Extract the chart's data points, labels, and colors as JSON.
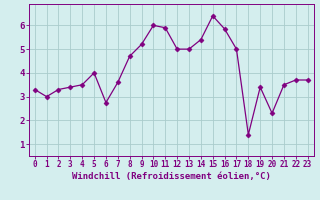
{
  "title": "",
  "xlabel": "Windchill (Refroidissement éolien,°C)",
  "ylabel": "",
  "x": [
    0,
    1,
    2,
    3,
    4,
    5,
    6,
    7,
    8,
    9,
    10,
    11,
    12,
    13,
    14,
    15,
    16,
    17,
    18,
    19,
    20,
    21,
    22,
    23
  ],
  "y": [
    3.3,
    3.0,
    3.3,
    3.4,
    3.5,
    4.0,
    2.75,
    3.6,
    4.7,
    5.2,
    6.0,
    5.9,
    5.0,
    5.0,
    5.4,
    6.4,
    5.85,
    5.0,
    1.4,
    3.4,
    2.3,
    3.5,
    3.7,
    3.7
  ],
  "line_color": "#800080",
  "marker_color": "#800080",
  "bg_color": "#d4eeee",
  "grid_color": "#aacccc",
  "axis_color": "#800080",
  "tick_color": "#800080",
  "label_color": "#800080",
  "ylim": [
    0.5,
    6.9
  ],
  "xlim": [
    -0.5,
    23.5
  ],
  "yticks": [
    1,
    2,
    3,
    4,
    5,
    6
  ],
  "xticks": [
    0,
    1,
    2,
    3,
    4,
    5,
    6,
    7,
    8,
    9,
    10,
    11,
    12,
    13,
    14,
    15,
    16,
    17,
    18,
    19,
    20,
    21,
    22,
    23
  ],
  "xlabel_fontsize": 6.5,
  "tick_fontsize": 6.5,
  "xtick_fontsize": 5.5,
  "marker": "D",
  "marker_size": 2.5,
  "line_width": 0.9
}
